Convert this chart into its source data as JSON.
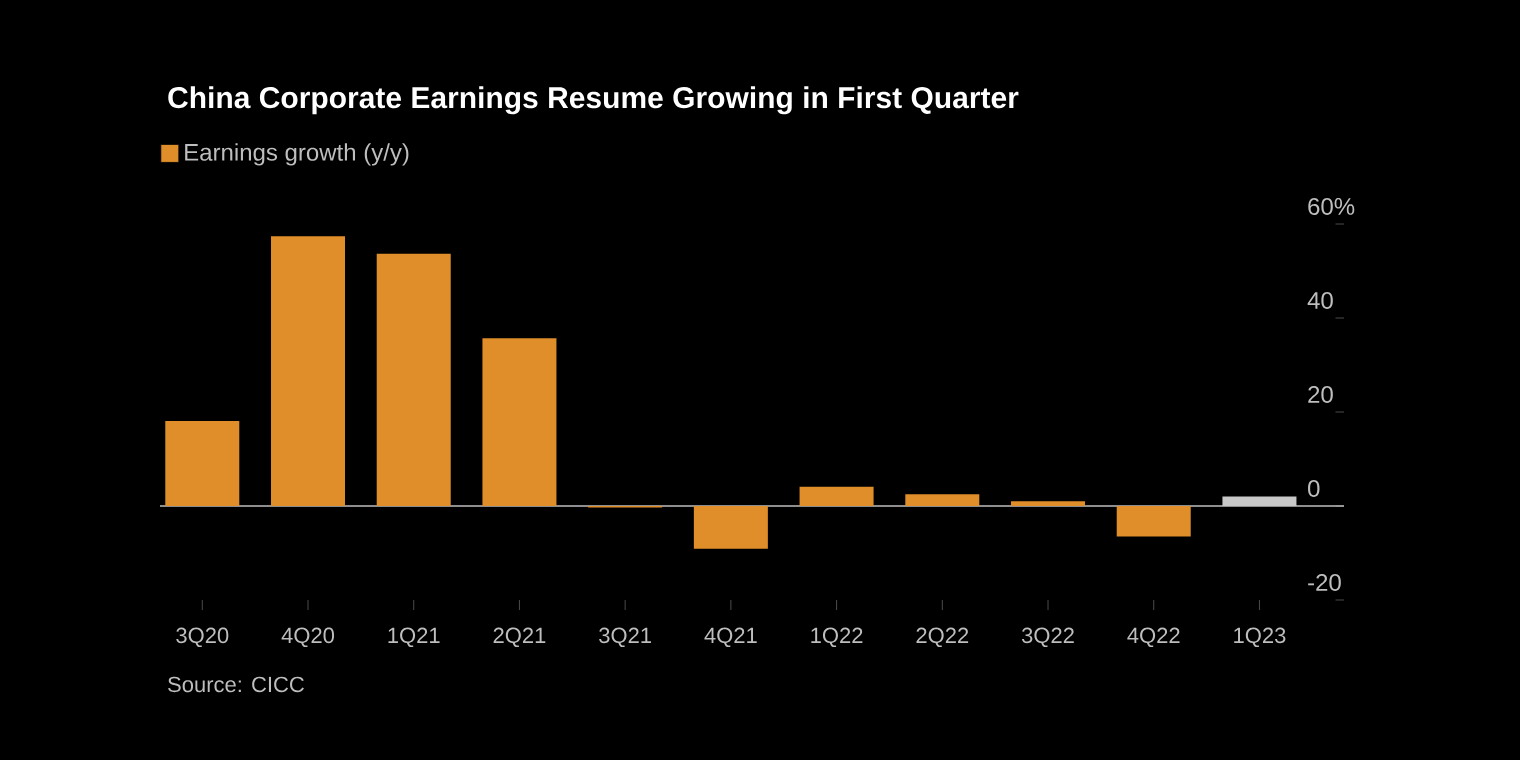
{
  "chart_data": {
    "type": "bar",
    "title": "China Corporate Earnings Resume Growing in First Quarter",
    "categories": [
      "3Q20",
      "4Q20",
      "1Q21",
      "2Q21",
      "3Q21",
      "4Q21",
      "1Q22",
      "2Q22",
      "3Q22",
      "4Q22",
      "1Q23"
    ],
    "series": [
      {
        "name": "Earnings growth (y/y)",
        "color": "#e08e29",
        "colors": [
          "#e08e29",
          "#e08e29",
          "#e08e29",
          "#e08e29",
          "#e08e29",
          "#e08e29",
          "#e08e29",
          "#e08e29",
          "#e08e29",
          "#e08e29",
          "#c8c8c8"
        ],
        "values": [
          18.1,
          57.4,
          53.7,
          35.7,
          -0.3,
          -9.1,
          4.1,
          2.5,
          1.0,
          -6.5,
          2.0
        ]
      }
    ],
    "ylim": [
      -20,
      60
    ],
    "yticks": [
      -20,
      0,
      20,
      40,
      {
        "value": 60,
        "label": "60%"
      }
    ],
    "legend": "top left",
    "annotations": [
      "Source: CICC"
    ]
  }
}
